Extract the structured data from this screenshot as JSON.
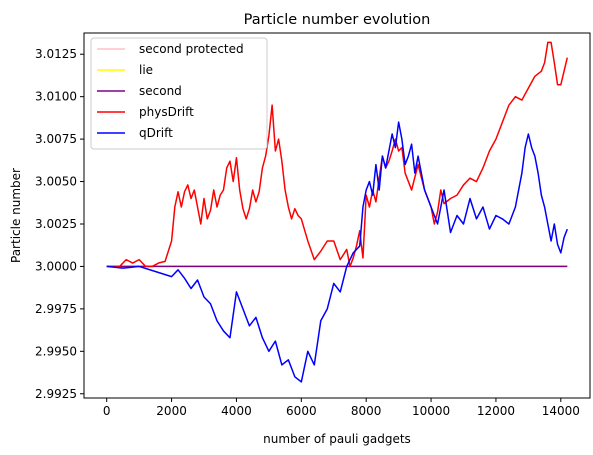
{
  "chart_data": {
    "type": "line",
    "title": "Particle number evolution",
    "xlabel": "number of pauli gadgets",
    "ylabel": "Particle number",
    "xlim": [
      -700,
      14900
    ],
    "ylim": [
      2.99225,
      3.01375
    ],
    "xticks": [
      0,
      2000,
      4000,
      6000,
      8000,
      10000,
      12000,
      14000
    ],
    "xtick_labels": [
      "0",
      "2000",
      "4000",
      "6000",
      "8000",
      "10000",
      "12000",
      "14000"
    ],
    "yticks": [
      2.9925,
      2.995,
      2.9975,
      3.0,
      3.0025,
      3.005,
      3.0075,
      3.01,
      3.0125
    ],
    "ytick_labels": [
      "2.9925",
      "2.9950",
      "2.9975",
      "3.0000",
      "3.0025",
      "3.0050",
      "3.0075",
      "3.0100",
      "3.0125"
    ],
    "grid": false,
    "legend_position": "top-left",
    "series": [
      {
        "name": "second protected",
        "color": "#ffc0cb",
        "x": [
          0,
          14200
        ],
        "y": [
          3.0,
          3.0
        ]
      },
      {
        "name": "lie",
        "color": "#ffff00",
        "x": [
          0,
          14200
        ],
        "y": [
          3.0,
          3.0
        ]
      },
      {
        "name": "second",
        "color": "#800080",
        "x": [
          0,
          14200
        ],
        "y": [
          3.0,
          3.0
        ]
      },
      {
        "name": "physDrift",
        "color": "#ff0000",
        "x": [
          0,
          400,
          600,
          800,
          1000,
          1200,
          1400,
          1600,
          1800,
          2000,
          2100,
          2200,
          2300,
          2400,
          2500,
          2600,
          2700,
          2800,
          2900,
          3000,
          3100,
          3200,
          3300,
          3400,
          3500,
          3600,
          3700,
          3800,
          3900,
          4000,
          4100,
          4200,
          4300,
          4400,
          4500,
          4600,
          4700,
          4800,
          4900,
          5000,
          5100,
          5200,
          5300,
          5400,
          5500,
          5600,
          5700,
          5800,
          5900,
          6000,
          6200,
          6400,
          6600,
          6800,
          7000,
          7200,
          7400,
          7500,
          7600,
          7700,
          7800,
          7900,
          8000,
          8100,
          8200,
          8300,
          8400,
          8500,
          8600,
          8700,
          8800,
          8900,
          9000,
          9100,
          9200,
          9400,
          9600,
          9800,
          10000,
          10100,
          10200,
          10300,
          10400,
          10600,
          10800,
          11000,
          11200,
          11400,
          11600,
          11800,
          12000,
          12200,
          12400,
          12600,
          12800,
          13000,
          13200,
          13400,
          13500,
          13600,
          13700,
          13800,
          13900,
          14000,
          14100,
          14200
        ],
        "y": [
          3.0,
          3.0,
          3.0004,
          3.0002,
          3.0004,
          3.0,
          3.0,
          3.0002,
          3.0003,
          3.0015,
          3.0035,
          3.0044,
          3.0035,
          3.0044,
          3.0048,
          3.004,
          3.0045,
          3.0035,
          3.0025,
          3.004,
          3.0028,
          3.0033,
          3.0045,
          3.0035,
          3.0042,
          3.0045,
          3.0058,
          3.0062,
          3.005,
          3.0064,
          3.0045,
          3.0034,
          3.0028,
          3.0034,
          3.0045,
          3.0038,
          3.0044,
          3.0058,
          3.0065,
          3.0077,
          3.0095,
          3.0068,
          3.0075,
          3.0062,
          3.0045,
          3.0035,
          3.0028,
          3.0034,
          3.003,
          3.0028,
          3.0015,
          3.0004,
          3.0009,
          3.0015,
          3.0015,
          3.0004,
          3.001,
          3.0,
          3.0005,
          3.0012,
          3.0021,
          3.0005,
          3.0042,
          3.0035,
          3.0045,
          3.0038,
          3.0052,
          3.0065,
          3.0058,
          3.0062,
          3.0068,
          3.0075,
          3.0068,
          3.007,
          3.0055,
          3.0045,
          3.006,
          3.0045,
          3.0035,
          3.0025,
          3.0032,
          3.0045,
          3.0037,
          3.004,
          3.0042,
          3.0048,
          3.0052,
          3.005,
          3.0058,
          3.0068,
          3.0075,
          3.0085,
          3.0095,
          3.01,
          3.0098,
          3.0105,
          3.0112,
          3.0115,
          3.012,
          3.0132,
          3.0132,
          3.012,
          3.0107,
          3.0107,
          3.0115,
          3.0123
        ]
      },
      {
        "name": "qDrift",
        "color": "#0000ff",
        "x": [
          0,
          500,
          1000,
          1500,
          2000,
          2200,
          2400,
          2600,
          2800,
          3000,
          3200,
          3400,
          3600,
          3800,
          4000,
          4200,
          4400,
          4600,
          4800,
          5000,
          5200,
          5400,
          5600,
          5800,
          6000,
          6200,
          6400,
          6600,
          6800,
          7000,
          7200,
          7400,
          7600,
          7800,
          7900,
          8000,
          8100,
          8200,
          8300,
          8400,
          8500,
          8600,
          8700,
          8800,
          8900,
          9000,
          9100,
          9200,
          9300,
          9400,
          9500,
          9600,
          9700,
          9800,
          9900,
          10000,
          10200,
          10400,
          10600,
          10800,
          11000,
          11200,
          11400,
          11600,
          11800,
          12000,
          12200,
          12400,
          12600,
          12800,
          12900,
          13000,
          13100,
          13200,
          13300,
          13400,
          13500,
          13600,
          13700,
          13800,
          13900,
          14000,
          14100,
          14200
        ],
        "y": [
          3.0,
          2.9999,
          3.0,
          2.9997,
          2.9994,
          2.9998,
          2.9993,
          2.9987,
          2.9992,
          2.9982,
          2.9978,
          2.9968,
          2.9962,
          2.9958,
          2.9985,
          2.9975,
          2.9965,
          2.997,
          2.9958,
          2.995,
          2.9956,
          2.9942,
          2.9945,
          2.9935,
          2.9932,
          2.995,
          2.9942,
          2.9968,
          2.9975,
          2.999,
          2.9985,
          3.0,
          3.0008,
          3.0012,
          3.0035,
          3.0045,
          3.005,
          3.0042,
          3.006,
          3.0045,
          3.0065,
          3.0058,
          3.0068,
          3.0078,
          3.007,
          3.0085,
          3.0075,
          3.006,
          3.0065,
          3.0072,
          3.0055,
          3.0065,
          3.0055,
          3.0045,
          3.004,
          3.0035,
          3.0025,
          3.0045,
          3.002,
          3.003,
          3.0025,
          3.004,
          3.0028,
          3.0035,
          3.0022,
          3.003,
          3.0028,
          3.0025,
          3.0035,
          3.0055,
          3.007,
          3.0078,
          3.007,
          3.0065,
          3.0055,
          3.0042,
          3.0035,
          3.0025,
          3.0015,
          3.0025,
          3.0013,
          3.0008,
          3.0017,
          3.0022
        ]
      }
    ]
  }
}
